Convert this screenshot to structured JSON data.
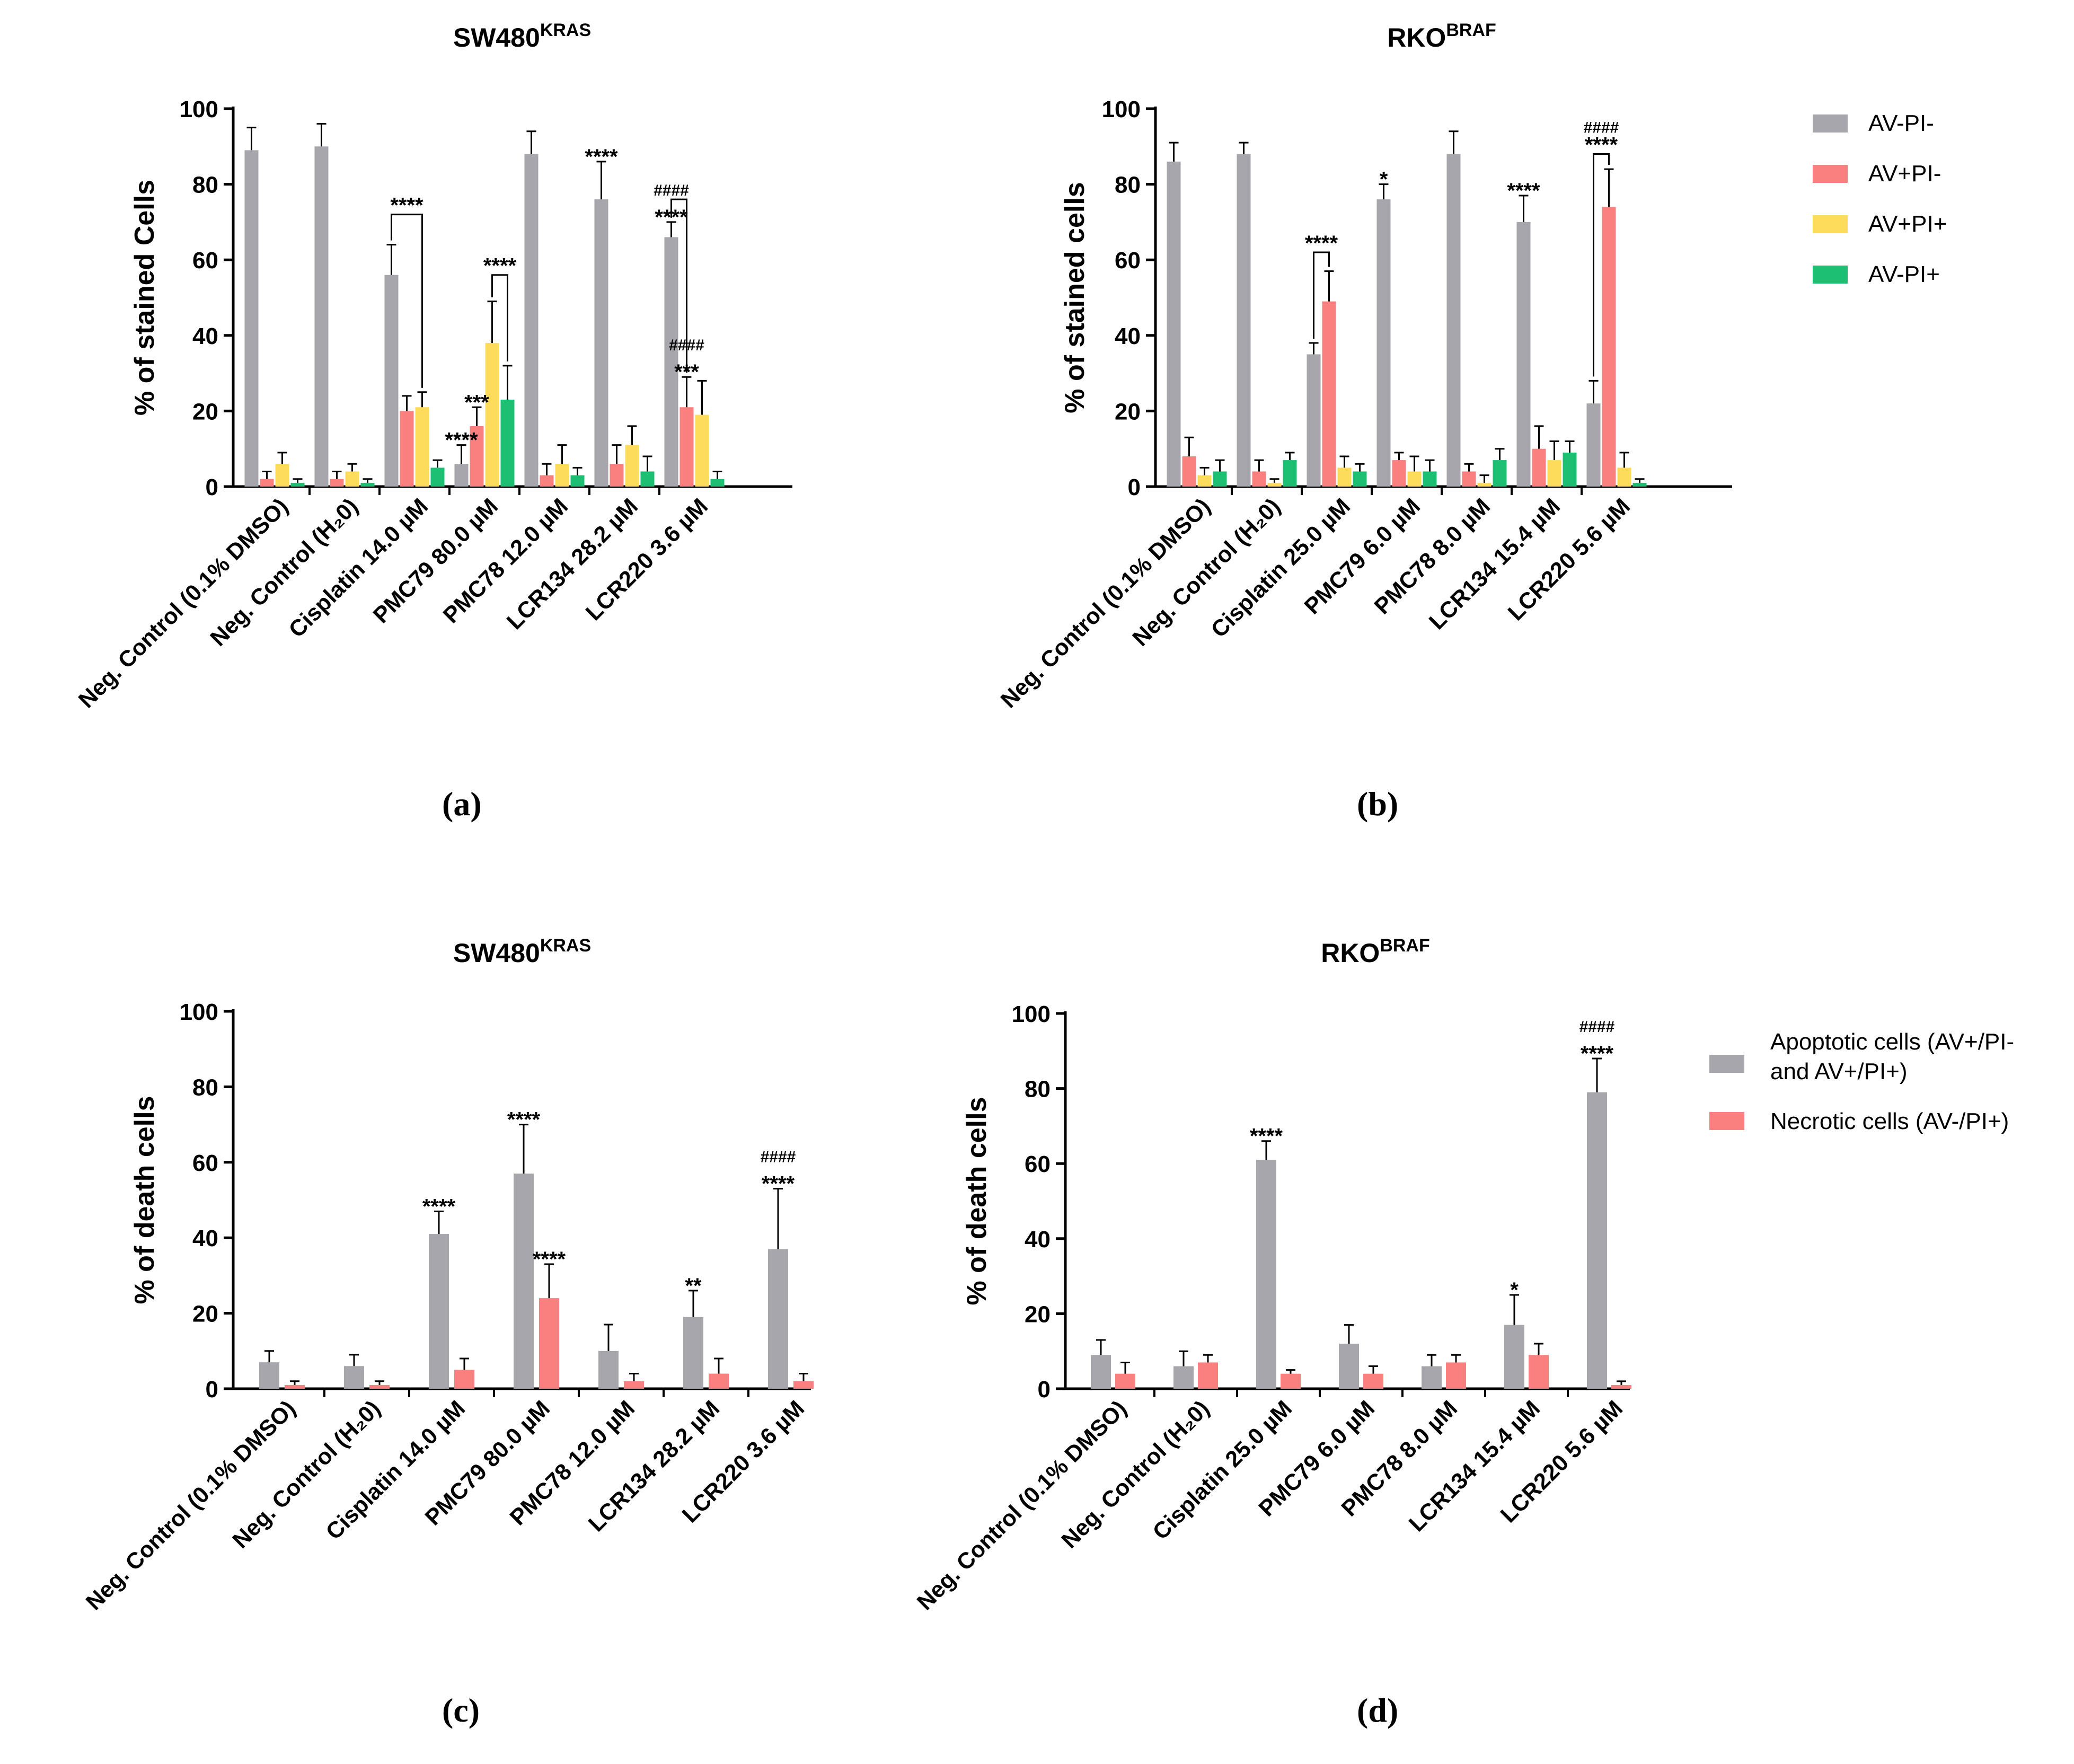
{
  "figure": {
    "colors": {
      "gray": "#A6A6AC",
      "red": "#FA8080",
      "yellow": "#FDDC5C",
      "green": "#1DBF73",
      "axis": "#000000"
    },
    "panel_labels": [
      "(a)",
      "(b)",
      "(c)",
      "(d)"
    ]
  },
  "chart_data": [
    {
      "id": "a",
      "type": "bar",
      "title": {
        "main": "SW480",
        "sup": "KRAS"
      },
      "ylabel": "% of stained Cells",
      "ylim": [
        0,
        100
      ],
      "yticks": [
        "0",
        "20",
        "40",
        "60",
        "80",
        "100"
      ],
      "categories": [
        "Neg. Control (0.1% DMSO)",
        "Neg. Control (H₂0)",
        "Cisplatin 14.0 µM",
        "PMC79 80.0 µM",
        "PMC78 12.0 µM",
        "LCR134 28.2 µM",
        "LCR220 3.6 µM"
      ],
      "series": [
        {
          "name": "AV-PI-",
          "color": "#A6A6AC",
          "values": [
            89,
            90,
            56,
            6,
            88,
            76,
            66
          ],
          "errors": [
            6,
            6,
            8,
            5,
            6,
            10,
            4
          ]
        },
        {
          "name": "AV+PI-",
          "color": "#FA8080",
          "values": [
            2,
            2,
            20,
            16,
            3,
            6,
            21
          ],
          "errors": [
            2,
            2,
            4,
            5,
            3,
            5,
            8
          ]
        },
        {
          "name": "AV+PI+",
          "color": "#FDDC5C",
          "values": [
            6,
            4,
            21,
            38,
            6,
            11,
            19
          ],
          "errors": [
            3,
            2,
            4,
            11,
            5,
            5,
            9
          ]
        },
        {
          "name": "AV-PI+",
          "color": "#1DBF73",
          "values": [
            1,
            1,
            5,
            23,
            3,
            4,
            2
          ],
          "errors": [
            1,
            1,
            2,
            9,
            2,
            4,
            2
          ]
        }
      ],
      "annotations": [
        {
          "text": "****",
          "cat": 5,
          "series": 0
        },
        {
          "text": "****",
          "cat": 6,
          "series": 0
        },
        {
          "text": "####",
          "cat": 6,
          "series": 0,
          "level": 1
        },
        {
          "text": "****",
          "cat": 3,
          "series": 0
        },
        {
          "text": "***",
          "cat": 3,
          "series": 1
        },
        {
          "text": "***",
          "cat": 6,
          "series": 1
        },
        {
          "text": "####",
          "cat": 6,
          "series": 1,
          "level": 1
        }
      ],
      "brackets": [
        {
          "text": "****",
          "cat": 2,
          "from": 0,
          "to": 2,
          "y": 72
        },
        {
          "text": "****",
          "cat": 3,
          "from": 2,
          "to": 3,
          "y": 56
        },
        {
          "text": "",
          "cat": 6,
          "from": 0,
          "to": 1,
          "y": 76
        }
      ]
    },
    {
      "id": "b",
      "type": "bar",
      "title": {
        "main": "RKO",
        "sup": "BRAF"
      },
      "ylabel": "% of stained cells",
      "ylim": [
        0,
        100
      ],
      "yticks": [
        "0",
        "20",
        "40",
        "60",
        "80",
        "100"
      ],
      "categories": [
        "Neg. Control (0.1% DMSO)",
        "Neg. Control (H₂0)",
        "Cisplatin 25.0 µM",
        "PMC79 6.0 µM",
        "PMC78 8.0 µM",
        "LCR134 15.4 µM",
        "LCR220 5.6 µM"
      ],
      "series": [
        {
          "name": "AV-PI-",
          "color": "#A6A6AC",
          "values": [
            86,
            88,
            35,
            76,
            88,
            70,
            22
          ],
          "errors": [
            5,
            3,
            3,
            4,
            6,
            7,
            6
          ]
        },
        {
          "name": "AV+PI-",
          "color": "#FA8080",
          "values": [
            8,
            4,
            49,
            7,
            4,
            10,
            74
          ],
          "errors": [
            5,
            3,
            8,
            2,
            2,
            6,
            10
          ]
        },
        {
          "name": "AV+PI+",
          "color": "#FDDC5C",
          "values": [
            3,
            1,
            5,
            4,
            1,
            7,
            5
          ],
          "errors": [
            2,
            1,
            3,
            4,
            2,
            5,
            4
          ]
        },
        {
          "name": "AV-PI+",
          "color": "#1DBF73",
          "values": [
            4,
            7,
            4,
            4,
            7,
            9,
            1
          ],
          "errors": [
            3,
            2,
            2,
            3,
            3,
            3,
            1
          ]
        }
      ],
      "annotations": [
        {
          "text": "*",
          "cat": 3,
          "series": 0
        },
        {
          "text": "****",
          "cat": 5,
          "series": 0
        }
      ],
      "brackets": [
        {
          "text": "****",
          "cat": 2,
          "from": 0,
          "to": 1,
          "y": 62
        },
        {
          "text": "****",
          "cat": 6,
          "from": 0,
          "to": 1,
          "y": 88,
          "text2": "####"
        }
      ],
      "legend": {
        "entries": [
          "AV-PI-",
          "AV+PI-",
          "AV+PI+",
          "AV-PI+"
        ],
        "placement": "right"
      }
    },
    {
      "id": "c",
      "type": "bar",
      "title": {
        "main": "SW480",
        "sup": "KRAS"
      },
      "ylabel": "% of death cells",
      "ylim": [
        0,
        100
      ],
      "yticks": [
        "0",
        "20",
        "40",
        "60",
        "80",
        "100"
      ],
      "categories": [
        "Neg. Control (0.1% DMSO)",
        "Neg. Control (H₂0)",
        "Cisplatin 14.0 µM",
        "PMC79 80.0 µM",
        "PMC78 12.0 µM",
        "LCR134 28.2 µM",
        "LCR220 3.6 µM"
      ],
      "series": [
        {
          "name": "Apoptotic cells (AV+/PI- and AV+/PI+)",
          "color": "#A6A6AC",
          "values": [
            7,
            6,
            41,
            57,
            10,
            19,
            37
          ],
          "errors": [
            3,
            3,
            6,
            13,
            7,
            7,
            16
          ]
        },
        {
          "name": "Necrotic cells (AV-/PI+)",
          "color": "#FA8080",
          "values": [
            1,
            1,
            5,
            24,
            2,
            4,
            2
          ],
          "errors": [
            1,
            1,
            3,
            9,
            2,
            4,
            2
          ]
        }
      ],
      "annotations": [
        {
          "text": "****",
          "cat": 2,
          "series": 0
        },
        {
          "text": "****",
          "cat": 3,
          "series": 0
        },
        {
          "text": "****",
          "cat": 3,
          "series": 1
        },
        {
          "text": "**",
          "cat": 5,
          "series": 0
        },
        {
          "text": "****",
          "cat": 6,
          "series": 0
        },
        {
          "text": "####",
          "cat": 6,
          "series": 0,
          "level": 1
        }
      ],
      "brackets": []
    },
    {
      "id": "d",
      "type": "bar",
      "title": {
        "main": "RKO",
        "sup": "BRAF"
      },
      "ylabel": "% of  death cells",
      "ylim": [
        0,
        100
      ],
      "yticks": [
        "0",
        "20",
        "40",
        "60",
        "80",
        "100"
      ],
      "categories": [
        "Neg. Control (0.1% DMSO)",
        "Neg. Control (H₂0)",
        "Cisplatin 25.0 µM",
        "PMC79 6.0 µM",
        "PMC78 8.0 µM",
        "LCR134 15.4 µM",
        "LCR220 5.6 µM"
      ],
      "series": [
        {
          "name": "Apoptotic cells (AV+/PI- and AV+/PI+)",
          "color": "#A6A6AC",
          "values": [
            9,
            6,
            61,
            12,
            6,
            17,
            79
          ],
          "errors": [
            4,
            4,
            5,
            5,
            3,
            8,
            9
          ]
        },
        {
          "name": "Necrotic cells (AV-/PI+)",
          "color": "#FA8080",
          "values": [
            4,
            7,
            4,
            4,
            7,
            9,
            1
          ],
          "errors": [
            3,
            2,
            1,
            2,
            2,
            3,
            1
          ]
        }
      ],
      "annotations": [
        {
          "text": "****",
          "cat": 2,
          "series": 0
        },
        {
          "text": "*",
          "cat": 5,
          "series": 0
        },
        {
          "text": "****",
          "cat": 6,
          "series": 0
        },
        {
          "text": "####",
          "cat": 6,
          "series": 0,
          "level": 1
        }
      ],
      "brackets": [],
      "legend": {
        "entries": [
          "Apoptotic cells (AV+/PI-",
          "and AV+/PI+)",
          "Necrotic cells (AV-/PI+)"
        ],
        "placement": "right"
      }
    }
  ]
}
